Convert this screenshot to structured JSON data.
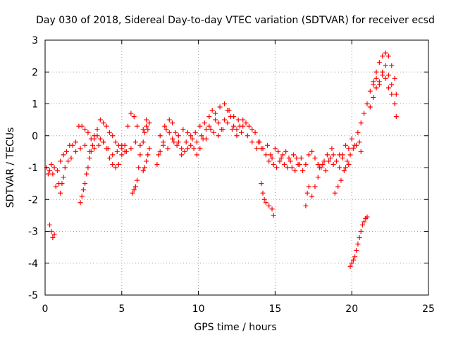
{
  "chart_data": {
    "type": "scatter",
    "title": "Day 030 of 2018, Sidereal Day-to-day VTEC variation (SDTVAR) for receiver ecsd",
    "xlabel": "GPS time / hours",
    "ylabel": "SDTVAR / TECUs",
    "xlim": [
      0,
      25
    ],
    "ylim": [
      -5,
      3
    ],
    "xticks": [
      0,
      5,
      10,
      15,
      20,
      25
    ],
    "yticks": [
      -5,
      -4,
      -3,
      -2,
      -1,
      0,
      1,
      2,
      3
    ],
    "xtick_labels": [
      "0",
      "5",
      "10",
      "15",
      "20",
      "25"
    ],
    "ytick_labels": [
      "-5",
      "-4",
      "-3",
      "-2",
      "-1",
      "0",
      "1",
      "2",
      "3"
    ],
    "grid": true,
    "marker": "+",
    "color": "#ff0000",
    "series": [
      {
        "name": "ecsd",
        "points": [
          [
            0.1,
            -1.0
          ],
          [
            0.2,
            -1.2
          ],
          [
            0.3,
            -1.1
          ],
          [
            0.4,
            -0.9
          ],
          [
            0.5,
            -1.2
          ],
          [
            0.6,
            -1.0
          ],
          [
            0.8,
            -1.1
          ],
          [
            1.0,
            -0.8
          ],
          [
            1.2,
            -0.6
          ],
          [
            1.4,
            -0.5
          ],
          [
            1.6,
            -0.3
          ],
          [
            1.8,
            -0.3
          ],
          [
            2.0,
            -0.2
          ],
          [
            2.2,
            0.3
          ],
          [
            2.4,
            0.3
          ],
          [
            2.6,
            0.2
          ],
          [
            2.8,
            0.1
          ],
          [
            3.0,
            -0.1
          ],
          [
            3.2,
            0.0
          ],
          [
            3.4,
            0.2
          ],
          [
            3.6,
            0.5
          ],
          [
            3.8,
            0.4
          ],
          [
            4.0,
            0.3
          ],
          [
            4.2,
            0.1
          ],
          [
            4.4,
            0.0
          ],
          [
            4.6,
            -0.2
          ],
          [
            4.8,
            -0.3
          ],
          [
            5.0,
            -0.4
          ],
          [
            5.2,
            -0.5
          ],
          [
            5.4,
            0.3
          ],
          [
            5.6,
            0.7
          ],
          [
            5.8,
            0.6
          ],
          [
            6.0,
            0.3
          ],
          [
            6.2,
            -0.3
          ],
          [
            6.4,
            0.2
          ],
          [
            6.6,
            0.5
          ],
          [
            6.8,
            0.4
          ],
          [
            0.3,
            -2.8
          ],
          [
            0.4,
            -3.0
          ],
          [
            0.5,
            -3.2
          ],
          [
            0.6,
            -3.1
          ],
          [
            0.7,
            -1.6
          ],
          [
            0.9,
            -1.5
          ],
          [
            1.0,
            -1.8
          ],
          [
            1.1,
            -1.5
          ],
          [
            1.2,
            -1.3
          ],
          [
            1.3,
            -1.0
          ],
          [
            1.5,
            -0.8
          ],
          [
            1.7,
            -0.7
          ],
          [
            2.0,
            -0.5
          ],
          [
            2.3,
            -0.4
          ],
          [
            2.6,
            -0.3
          ],
          [
            2.9,
            -0.5
          ],
          [
            3.2,
            -0.4
          ],
          [
            3.5,
            -0.3
          ],
          [
            3.8,
            -0.2
          ],
          [
            4.1,
            -0.4
          ],
          [
            4.4,
            -0.6
          ],
          [
            4.7,
            -0.5
          ],
          [
            5.0,
            -0.3
          ],
          [
            5.3,
            -0.5
          ],
          [
            5.6,
            -0.4
          ],
          [
            5.9,
            -0.2
          ],
          [
            2.3,
            -2.1
          ],
          [
            2.4,
            -1.9
          ],
          [
            2.5,
            -1.7
          ],
          [
            2.6,
            -1.5
          ],
          [
            2.7,
            -1.2
          ],
          [
            2.8,
            -1.0
          ],
          [
            2.9,
            -0.7
          ],
          [
            3.0,
            -0.5
          ],
          [
            3.1,
            -0.3
          ],
          [
            3.2,
            -0.1
          ],
          [
            3.4,
            0.0
          ],
          [
            3.6,
            -0.1
          ],
          [
            3.8,
            -0.2
          ],
          [
            4.0,
            -0.4
          ],
          [
            4.2,
            -0.7
          ],
          [
            4.4,
            -0.9
          ],
          [
            4.6,
            -1.0
          ],
          [
            4.8,
            -0.9
          ],
          [
            5.0,
            -0.6
          ],
          [
            5.2,
            -0.3
          ],
          [
            5.7,
            -1.8
          ],
          [
            5.8,
            -1.7
          ],
          [
            5.9,
            -1.6
          ],
          [
            6.0,
            -1.4
          ],
          [
            6.1,
            -1.0
          ],
          [
            6.2,
            -0.6
          ],
          [
            6.4,
            -0.2
          ],
          [
            6.5,
            0.1
          ],
          [
            6.6,
            0.3
          ],
          [
            6.7,
            0.2
          ],
          [
            6.4,
            -1.1
          ],
          [
            6.5,
            -1.0
          ],
          [
            6.6,
            -0.8
          ],
          [
            6.7,
            -0.6
          ],
          [
            6.8,
            -0.4
          ],
          [
            7.3,
            -0.9
          ],
          [
            7.5,
            -0.5
          ],
          [
            7.7,
            -0.2
          ],
          [
            7.9,
            0.2
          ],
          [
            8.1,
            0.5
          ],
          [
            8.3,
            0.4
          ],
          [
            8.5,
            0.1
          ],
          [
            8.7,
            -0.2
          ],
          [
            8.9,
            -0.4
          ],
          [
            9.1,
            -0.5
          ],
          [
            9.3,
            -0.4
          ],
          [
            9.5,
            -0.3
          ],
          [
            9.7,
            -0.4
          ],
          [
            9.9,
            -0.6
          ],
          [
            10.1,
            -0.4
          ],
          [
            10.3,
            -0.1
          ],
          [
            10.5,
            0.2
          ],
          [
            10.7,
            0.6
          ],
          [
            10.9,
            0.8
          ],
          [
            11.1,
            0.7
          ],
          [
            11.3,
            0.4
          ],
          [
            11.5,
            0.2
          ],
          [
            11.7,
            0.5
          ],
          [
            11.9,
            0.8
          ],
          [
            12.1,
            0.6
          ],
          [
            12.3,
            0.3
          ],
          [
            12.5,
            0.2
          ],
          [
            12.7,
            0.3
          ],
          [
            12.9,
            0.5
          ],
          [
            13.1,
            0.4
          ],
          [
            13.3,
            0.3
          ],
          [
            13.5,
            0.2
          ],
          [
            13.7,
            0.1
          ],
          [
            13.9,
            -0.2
          ],
          [
            14.1,
            -0.4
          ],
          [
            7.5,
            0.0
          ],
          [
            7.8,
            0.3
          ],
          [
            8.1,
            0.1
          ],
          [
            8.4,
            -0.2
          ],
          [
            8.7,
            0.0
          ],
          [
            9.0,
            0.2
          ],
          [
            9.3,
            0.1
          ],
          [
            9.6,
            -0.1
          ],
          [
            9.9,
            -0.2
          ],
          [
            10.2,
            0.0
          ],
          [
            10.5,
            -0.1
          ],
          [
            10.8,
            0.2
          ],
          [
            11.1,
            0.5
          ],
          [
            11.4,
            0.9
          ],
          [
            11.7,
            1.0
          ],
          [
            12.0,
            0.8
          ],
          [
            12.3,
            0.6
          ],
          [
            12.6,
            0.5
          ],
          [
            12.9,
            0.3
          ],
          [
            13.2,
            0.0
          ],
          [
            13.5,
            -0.2
          ],
          [
            13.8,
            -0.4
          ],
          [
            7.4,
            -0.6
          ],
          [
            7.7,
            -0.3
          ],
          [
            8.0,
            -0.4
          ],
          [
            8.3,
            -0.1
          ],
          [
            8.6,
            -0.3
          ],
          [
            8.9,
            -0.6
          ],
          [
            9.2,
            -0.2
          ],
          [
            9.5,
            0.0
          ],
          [
            9.8,
            0.1
          ],
          [
            10.1,
            0.3
          ],
          [
            10.4,
            0.4
          ],
          [
            10.7,
            0.3
          ],
          [
            11.0,
            0.1
          ],
          [
            11.3,
            0.0
          ],
          [
            11.6,
            0.2
          ],
          [
            11.9,
            0.4
          ],
          [
            12.2,
            0.2
          ],
          [
            12.5,
            0.0
          ],
          [
            12.8,
            0.1
          ],
          [
            14.0,
            -0.2
          ],
          [
            14.2,
            -0.4
          ],
          [
            14.4,
            -0.6
          ],
          [
            14.6,
            -0.8
          ],
          [
            14.8,
            -0.7
          ],
          [
            15.0,
            -0.4
          ],
          [
            15.2,
            -0.5
          ],
          [
            15.4,
            -0.7
          ],
          [
            15.6,
            -0.9
          ],
          [
            15.8,
            -1.0
          ],
          [
            16.0,
            -0.8
          ],
          [
            16.2,
            -0.6
          ],
          [
            16.4,
            -0.7
          ],
          [
            16.6,
            -0.9
          ],
          [
            16.8,
            -1.1
          ],
          [
            17.0,
            -0.9
          ],
          [
            17.2,
            -0.6
          ],
          [
            17.4,
            -0.5
          ],
          [
            17.6,
            -0.7
          ],
          [
            17.8,
            -0.9
          ],
          [
            18.0,
            -1.0
          ],
          [
            18.2,
            -0.8
          ],
          [
            18.4,
            -0.6
          ],
          [
            18.6,
            -0.7
          ],
          [
            18.8,
            -0.9
          ],
          [
            19.0,
            -0.8
          ],
          [
            19.2,
            -0.6
          ],
          [
            19.4,
            -0.7
          ],
          [
            19.6,
            -1.0
          ],
          [
            19.8,
            -0.9
          ],
          [
            14.1,
            -1.5
          ],
          [
            14.2,
            -1.8
          ],
          [
            14.3,
            -2.0
          ],
          [
            14.4,
            -2.1
          ],
          [
            14.6,
            -2.2
          ],
          [
            14.8,
            -2.3
          ],
          [
            14.9,
            -2.5
          ],
          [
            14.5,
            -0.3
          ],
          [
            14.7,
            -0.6
          ],
          [
            14.9,
            -0.9
          ],
          [
            15.1,
            -1.0
          ],
          [
            15.3,
            -0.8
          ],
          [
            15.5,
            -0.6
          ],
          [
            15.7,
            -0.5
          ],
          [
            15.9,
            -0.7
          ],
          [
            16.1,
            -1.0
          ],
          [
            16.3,
            -1.1
          ],
          [
            16.5,
            -0.9
          ],
          [
            16.7,
            -0.7
          ],
          [
            17.0,
            -2.2
          ],
          [
            17.1,
            -1.8
          ],
          [
            17.2,
            -1.6
          ],
          [
            17.4,
            -1.9
          ],
          [
            17.6,
            -1.6
          ],
          [
            17.8,
            -1.3
          ],
          [
            17.9,
            -1.0
          ],
          [
            18.1,
            -0.9
          ],
          [
            18.3,
            -1.1
          ],
          [
            18.5,
            -0.8
          ],
          [
            18.7,
            -0.4
          ],
          [
            18.8,
            -0.6
          ],
          [
            18.9,
            -1.8
          ],
          [
            19.1,
            -1.6
          ],
          [
            19.3,
            -1.4
          ],
          [
            19.5,
            -1.1
          ],
          [
            19.7,
            -0.8
          ],
          [
            19.9,
            -0.6
          ],
          [
            20.1,
            -0.4
          ],
          [
            20.3,
            -0.3
          ],
          [
            20.5,
            -0.2
          ],
          [
            20.6,
            -0.5
          ],
          [
            19.2,
            -1.0
          ],
          [
            19.4,
            -0.6
          ],
          [
            19.6,
            -0.3
          ],
          [
            19.8,
            -0.4
          ],
          [
            20.0,
            -0.1
          ],
          [
            20.2,
            -0.3
          ],
          [
            20.4,
            0.1
          ],
          [
            20.6,
            0.4
          ],
          [
            20.8,
            0.7
          ],
          [
            21.0,
            1.0
          ],
          [
            21.2,
            1.4
          ],
          [
            21.4,
            1.7
          ],
          [
            21.6,
            2.0
          ],
          [
            21.8,
            2.3
          ],
          [
            22.0,
            2.5
          ],
          [
            22.2,
            2.6
          ],
          [
            22.4,
            2.5
          ],
          [
            22.6,
            2.2
          ],
          [
            22.8,
            1.8
          ],
          [
            22.9,
            1.3
          ],
          [
            21.2,
            0.9
          ],
          [
            21.4,
            1.2
          ],
          [
            21.6,
            1.5
          ],
          [
            21.8,
            1.7
          ],
          [
            22.0,
            1.9
          ],
          [
            22.2,
            1.8
          ],
          [
            22.4,
            1.5
          ],
          [
            22.6,
            1.3
          ],
          [
            22.8,
            1.0
          ],
          [
            22.9,
            0.6
          ],
          [
            21.4,
            1.6
          ],
          [
            21.6,
            1.8
          ],
          [
            21.8,
            1.6
          ],
          [
            22.0,
            2.0
          ],
          [
            22.2,
            2.2
          ],
          [
            22.4,
            1.9
          ],
          [
            22.6,
            1.6
          ],
          [
            19.9,
            -4.1
          ],
          [
            20.0,
            -4.0
          ],
          [
            20.1,
            -3.9
          ],
          [
            20.2,
            -3.8
          ],
          [
            20.3,
            -3.6
          ],
          [
            20.4,
            -3.4
          ],
          [
            20.5,
            -3.2
          ],
          [
            20.6,
            -3.0
          ],
          [
            20.7,
            -2.8
          ],
          [
            20.8,
            -2.7
          ],
          [
            20.9,
            -2.6
          ],
          [
            21.0,
            -2.55
          ]
        ]
      }
    ]
  }
}
